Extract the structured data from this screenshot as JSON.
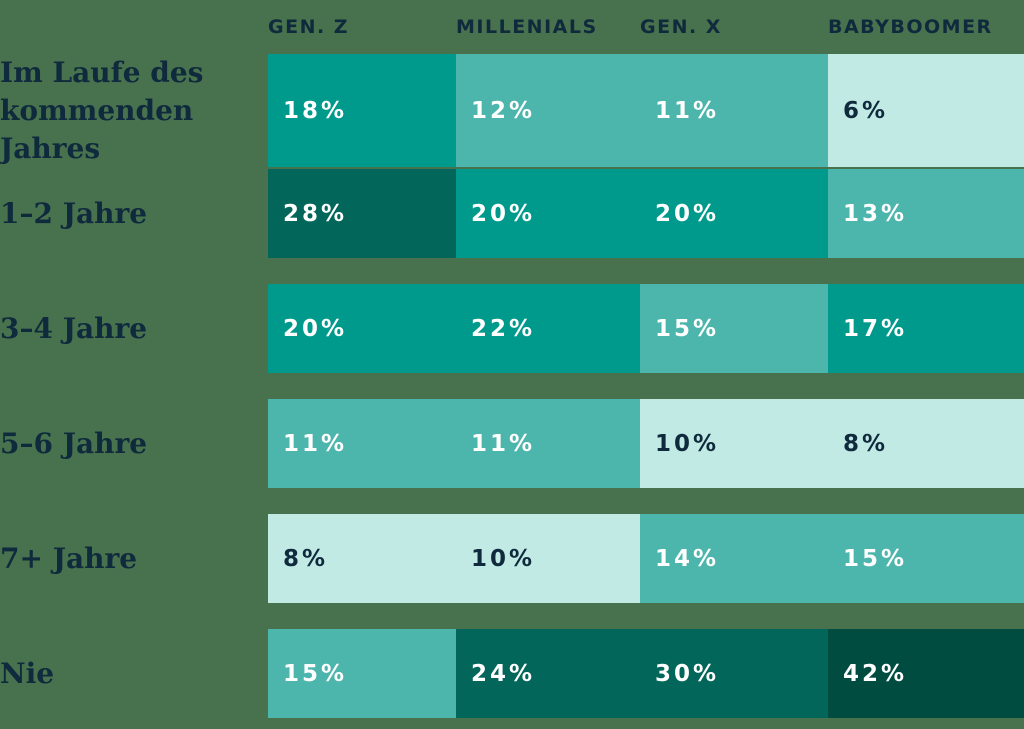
{
  "chart_data": {
    "type": "heatmap",
    "title": "",
    "columns": [
      "GEN. Z",
      "MILLENIALS",
      "GEN. X",
      "BABYBOOMER"
    ],
    "rows": [
      {
        "label": "Im Laufe des kommenden Jahres",
        "values": [
          18,
          12,
          11,
          6
        ]
      },
      {
        "label": "1–2 Jahre",
        "values": [
          28,
          20,
          20,
          13
        ]
      },
      {
        "label": "3–4 Jahre",
        "values": [
          20,
          22,
          15,
          17
        ]
      },
      {
        "label": "5–6 Jahre",
        "values": [
          11,
          11,
          10,
          8
        ]
      },
      {
        "label": "7+ Jahre",
        "values": [
          8,
          10,
          14,
          15
        ]
      },
      {
        "label": "Nie",
        "values": [
          15,
          24,
          30,
          42
        ]
      }
    ],
    "value_suffix": "%",
    "color_scale": [
      {
        "max": 10,
        "bg": "#c2eae5",
        "text": "#0e2a3c"
      },
      {
        "max": 15,
        "bg": "#4cb5ac",
        "text": "#ffffff"
      },
      {
        "max": 22,
        "bg": "#009a8c",
        "text": "#ffffff"
      },
      {
        "max": 30,
        "bg": "#02665a",
        "text": "#ffffff"
      },
      {
        "max": 100,
        "bg": "#004c41",
        "text": "#ffffff"
      }
    ],
    "layout": {
      "background": "#48714e",
      "label_color": "#0e2a3c",
      "header_color": "#0e2a3c",
      "legend": "none",
      "grid": "off"
    }
  }
}
